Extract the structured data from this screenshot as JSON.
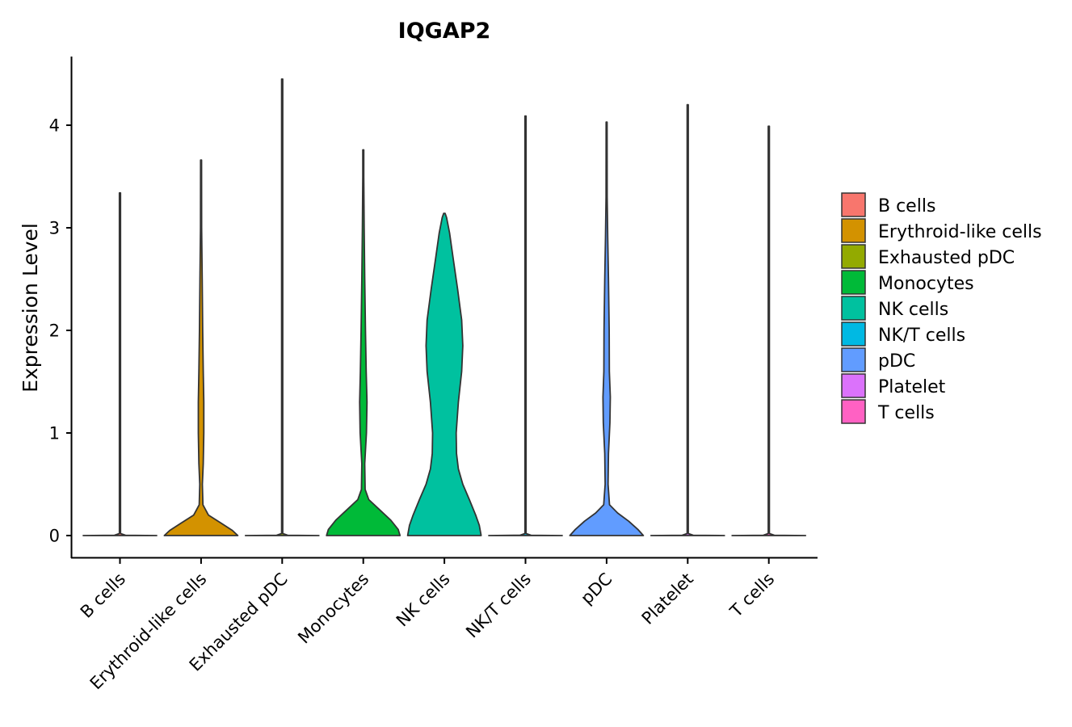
{
  "chart_data": {
    "type": "violin",
    "title": "IQGAP2",
    "xlabel": "",
    "ylabel": "Expression Level",
    "ylim": [
      -0.22,
      4.6
    ],
    "yticks": [
      0,
      1,
      2,
      3,
      4
    ],
    "ytick_labels": [
      "0",
      "1",
      "2",
      "3",
      "4"
    ],
    "legend_position": "right",
    "categories": [
      "B cells",
      "Erythroid-like cells",
      "Exhausted pDC",
      "Monocytes",
      "NK cells",
      "NK/T cells",
      "pDC",
      "Platelet",
      "T cells"
    ],
    "colors": [
      "#F8766D",
      "#D39200",
      "#93AA00",
      "#00BA38",
      "#00C19F",
      "#00B9E3",
      "#619CFF",
      "#DB72FB",
      "#FF61C3"
    ],
    "max_values": [
      3.34,
      3.66,
      4.45,
      3.76,
      3.14,
      4.09,
      4.03,
      4.2,
      3.99
    ],
    "density_profiles": [
      [
        [
          0,
          1.0
        ],
        [
          0.003,
          0.15
        ],
        [
          0.02,
          0.015
        ],
        [
          3.34,
          0.015
        ]
      ],
      [
        [
          0,
          1.0
        ],
        [
          0.05,
          0.85
        ],
        [
          0.12,
          0.55
        ],
        [
          0.2,
          0.2
        ],
        [
          0.3,
          0.05
        ],
        [
          0.5,
          0.035
        ],
        [
          0.7,
          0.06
        ],
        [
          1.0,
          0.075
        ],
        [
          1.3,
          0.075
        ],
        [
          1.6,
          0.06
        ],
        [
          2.0,
          0.045
        ],
        [
          2.5,
          0.03
        ],
        [
          3.0,
          0.015
        ],
        [
          3.66,
          0.008
        ]
      ],
      [
        [
          0,
          1.0
        ],
        [
          0.003,
          0.15
        ],
        [
          0.02,
          0.015
        ],
        [
          4.45,
          0.015
        ]
      ],
      [
        [
          0,
          1.0
        ],
        [
          0.06,
          0.95
        ],
        [
          0.15,
          0.75
        ],
        [
          0.25,
          0.45
        ],
        [
          0.35,
          0.15
        ],
        [
          0.45,
          0.05
        ],
        [
          0.7,
          0.04
        ],
        [
          1.0,
          0.085
        ],
        [
          1.3,
          0.1
        ],
        [
          1.6,
          0.08
        ],
        [
          2.0,
          0.06
        ],
        [
          2.5,
          0.04
        ],
        [
          3.0,
          0.025
        ],
        [
          3.5,
          0.012
        ],
        [
          3.76,
          0.006
        ]
      ],
      [
        [
          0,
          1.0
        ],
        [
          0.1,
          0.95
        ],
        [
          0.2,
          0.85
        ],
        [
          0.35,
          0.68
        ],
        [
          0.5,
          0.5
        ],
        [
          0.65,
          0.38
        ],
        [
          0.8,
          0.33
        ],
        [
          1.0,
          0.32
        ],
        [
          1.3,
          0.38
        ],
        [
          1.6,
          0.47
        ],
        [
          1.85,
          0.5
        ],
        [
          2.1,
          0.47
        ],
        [
          2.4,
          0.36
        ],
        [
          2.7,
          0.24
        ],
        [
          2.95,
          0.14
        ],
        [
          3.1,
          0.06
        ],
        [
          3.14,
          0.02
        ]
      ],
      [
        [
          0,
          1.0
        ],
        [
          0.003,
          0.15
        ],
        [
          0.02,
          0.015
        ],
        [
          4.09,
          0.015
        ]
      ],
      [
        [
          0,
          1.0
        ],
        [
          0.06,
          0.85
        ],
        [
          0.14,
          0.6
        ],
        [
          0.22,
          0.3
        ],
        [
          0.3,
          0.08
        ],
        [
          0.5,
          0.04
        ],
        [
          0.8,
          0.05
        ],
        [
          1.1,
          0.09
        ],
        [
          1.35,
          0.1
        ],
        [
          1.6,
          0.075
        ],
        [
          2.0,
          0.07
        ],
        [
          2.5,
          0.05
        ],
        [
          2.9,
          0.03
        ],
        [
          3.3,
          0.015
        ],
        [
          4.03,
          0.006
        ]
      ],
      [
        [
          0,
          1.0
        ],
        [
          0.003,
          0.15
        ],
        [
          0.02,
          0.015
        ],
        [
          4.2,
          0.015
        ]
      ],
      [
        [
          0,
          1.0
        ],
        [
          0.003,
          0.15
        ],
        [
          0.02,
          0.015
        ],
        [
          3.99,
          0.015
        ]
      ]
    ]
  }
}
